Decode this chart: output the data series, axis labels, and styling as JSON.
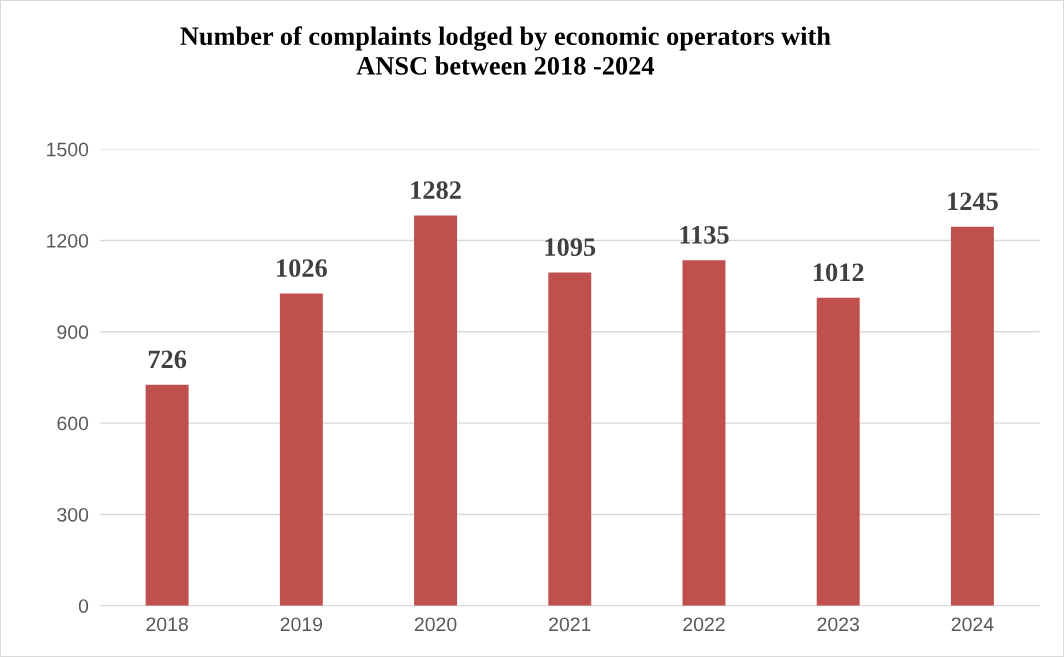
{
  "chart_data": {
    "type": "bar",
    "title": "Number of complaints lodged by economic operators with\nANSC between 2018 -2024",
    "categories": [
      "2018",
      "2019",
      "2020",
      "2021",
      "2022",
      "2023",
      "2024"
    ],
    "values": [
      726,
      1026,
      1282,
      1095,
      1135,
      1012,
      1245
    ],
    "color": "#c0504d",
    "ylim": [
      0,
      1500
    ],
    "yticks": [
      0,
      300,
      600,
      900,
      1200,
      1500
    ],
    "grid": "y",
    "data_labels": true,
    "legend": false
  }
}
